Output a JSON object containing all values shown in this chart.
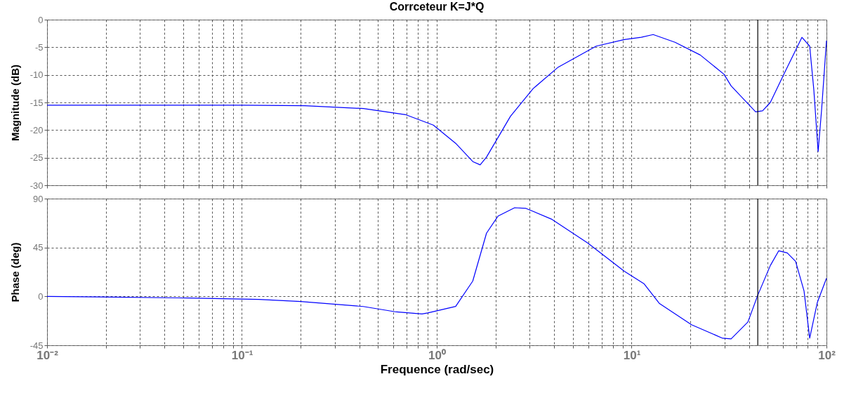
{
  "chart_data": [
    {
      "type": "line",
      "title": "Corrceteur K=J*Q",
      "ylabel": "Magnitude (dB)",
      "log": "x",
      "grid": true,
      "tick_labels": "y",
      "marker": "none",
      "line_style": "solid",
      "xlim": [
        0.01,
        100
      ],
      "xticks": [
        {
          "value": 0.01,
          "label": null
        },
        {
          "value": 0.1,
          "label": null
        },
        {
          "value": 1,
          "label": null
        },
        {
          "value": 10,
          "label": null
        },
        {
          "value": 100,
          "label": null
        }
      ],
      "ylim": [
        -30,
        0
      ],
      "yticks": [
        -30,
        -25,
        -20,
        -15,
        -10,
        -5,
        0
      ],
      "x": [
        0.01,
        0.1,
        0.21,
        0.42,
        0.69,
        0.96,
        1.25,
        1.53,
        1.67,
        1.8,
        2.39,
        3.12,
        4.2,
        6.58,
        9.17,
        11.2,
        12.9,
        16.7,
        22.5,
        29.8,
        32.4,
        43.3,
        47,
        51.5,
        60.8,
        74.8,
        82,
        86.1,
        90.6,
        94.4,
        100
      ],
      "series": [
        {
          "color": "#0000ff",
          "values": [
            -15.5,
            -15.5,
            -15.6,
            -16.1,
            -17.2,
            -19.1,
            -22.4,
            -25.7,
            -26.3,
            -24.9,
            -17.5,
            -12.5,
            -8.6,
            -4.8,
            -3.6,
            -3.2,
            -2.7,
            -4.1,
            -6.4,
            -9.9,
            -12,
            -16.7,
            -16.5,
            -15,
            -9.7,
            -3.2,
            -4.8,
            -12.7,
            -23.9,
            -16.3,
            -3.8
          ]
        }
      ],
      "ref_lines": [
        {
          "axis": "x",
          "value": 44.4,
          "color": "#000000"
        }
      ]
    },
    {
      "type": "line",
      "xlabel": "Frequence  (rad/sec)",
      "ylabel": "Phase (deg)",
      "log": "x",
      "grid": true,
      "marker": "none",
      "line_style": "solid",
      "xlim": [
        0.01,
        100
      ],
      "xticks": [
        {
          "value": 0.01,
          "label": "10⁻²"
        },
        {
          "value": 0.1,
          "label": "10⁻¹"
        },
        {
          "value": 1,
          "label": "10⁰"
        },
        {
          "value": 10,
          "label": "10¹"
        },
        {
          "value": 100,
          "label": "10²"
        }
      ],
      "ylim": [
        -45,
        90
      ],
      "yticks": [
        -45,
        0,
        45,
        90
      ],
      "x": [
        0.01,
        0.0185,
        0.053,
        0.122,
        0.2,
        0.42,
        0.62,
        0.84,
        0.9,
        1.25,
        1.53,
        1.8,
        2.06,
        2.51,
        2.87,
        3.87,
        5.95,
        9.17,
        11.6,
        13.9,
        20.3,
        29.3,
        32.4,
        39.5,
        44.4,
        51.5,
        56.9,
        62.9,
        69.4,
        76.7,
        82,
        89.8,
        100
      ],
      "series": [
        {
          "color": "#0000ff",
          "values": [
            0,
            -0.5,
            -1.5,
            -2.8,
            -4.7,
            -9.3,
            -14.3,
            -16.2,
            -15.2,
            -9.2,
            14.1,
            58.2,
            73.8,
            81.6,
            81,
            71.2,
            49.2,
            23.2,
            11.5,
            -6.6,
            -26.1,
            -38.5,
            -39.1,
            -23.6,
            1.1,
            28.4,
            42,
            40,
            32.3,
            5,
            -38.5,
            -5.4,
            16.7
          ]
        }
      ],
      "ref_lines": [
        {
          "axis": "x",
          "value": 44.4,
          "color": "#000000"
        }
      ]
    }
  ]
}
